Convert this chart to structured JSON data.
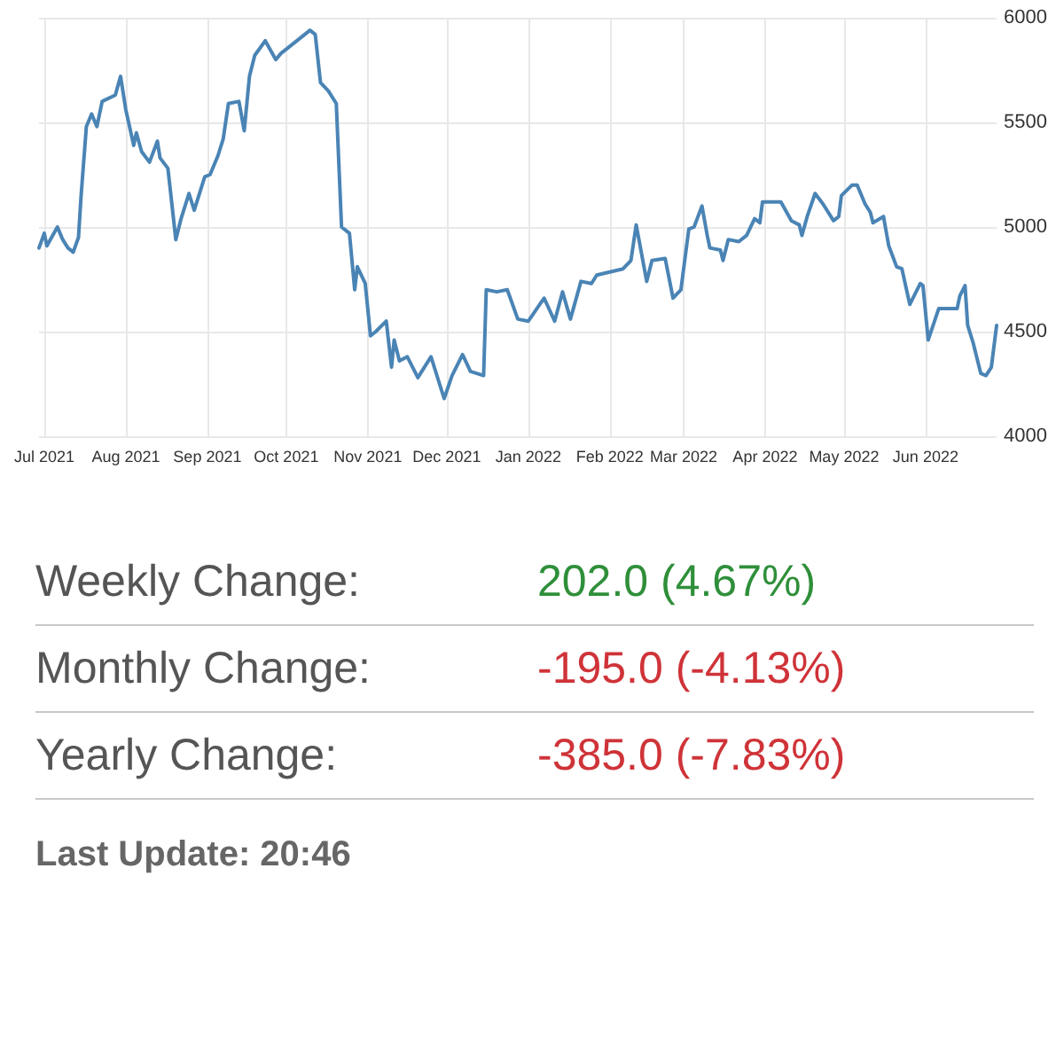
{
  "chart_data": [
    {
      "type": "line",
      "color": "#4a84b5",
      "grid": true,
      "xlim": [
        "2021-06-29",
        "2022-06-28"
      ],
      "ylim": [
        4000,
        6000
      ],
      "yticks": [
        4000,
        4500,
        5000,
        5500,
        6000
      ],
      "xticks": [
        {
          "value": "2021-07-01",
          "label": "Jul 2021"
        },
        {
          "value": "2021-08-01",
          "label": "Aug 2021"
        },
        {
          "value": "2021-09-01",
          "label": "Sep 2021"
        },
        {
          "value": "2021-10-01",
          "label": "Oct 2021"
        },
        {
          "value": "2021-11-01",
          "label": "Nov 2021"
        },
        {
          "value": "2021-12-01",
          "label": "Dec 2021"
        },
        {
          "value": "2022-01-01",
          "label": "Jan 2022"
        },
        {
          "value": "2022-02-01",
          "label": "Feb 2022"
        },
        {
          "value": "2022-03-01",
          "label": "Mar 2022"
        },
        {
          "value": "2022-04-01",
          "label": "Apr 2022"
        },
        {
          "value": "2022-05-01",
          "label": "May 2022"
        },
        {
          "value": "2022-06-01",
          "label": "Jun 2022"
        }
      ],
      "x": [
        "2021-06-29",
        "2021-07-01",
        "2021-07-02",
        "2021-07-06",
        "2021-07-08",
        "2021-07-10",
        "2021-07-12",
        "2021-07-14",
        "2021-07-15",
        "2021-07-17",
        "2021-07-19",
        "2021-07-21",
        "2021-07-23",
        "2021-07-28",
        "2021-07-30",
        "2021-08-01",
        "2021-08-04",
        "2021-08-05",
        "2021-08-07",
        "2021-08-10",
        "2021-08-13",
        "2021-08-14",
        "2021-08-17",
        "2021-08-20",
        "2021-08-22",
        "2021-08-25",
        "2021-08-27",
        "2021-08-31",
        "2021-09-02",
        "2021-09-05",
        "2021-09-07",
        "2021-09-09",
        "2021-09-13",
        "2021-09-15",
        "2021-09-17",
        "2021-09-19",
        "2021-09-23",
        "2021-09-27",
        "2021-09-29",
        "2021-10-04",
        "2021-10-10",
        "2021-10-12",
        "2021-10-14",
        "2021-10-17",
        "2021-10-20",
        "2021-10-22",
        "2021-10-25",
        "2021-10-27",
        "2021-10-28",
        "2021-10-31",
        "2021-11-02",
        "2021-11-04",
        "2021-11-08",
        "2021-11-10",
        "2021-11-11",
        "2021-11-13",
        "2021-11-16",
        "2021-11-20",
        "2021-11-25",
        "2021-11-30",
        "2021-12-03",
        "2021-12-07",
        "2021-12-10",
        "2021-12-15",
        "2021-12-16",
        "2021-12-20",
        "2021-12-24",
        "2021-12-28",
        "2022-01-01",
        "2022-01-07",
        "2022-01-11",
        "2022-01-14",
        "2022-01-17",
        "2022-01-21",
        "2022-01-25",
        "2022-01-27",
        "2022-02-06",
        "2022-02-09",
        "2022-02-11",
        "2022-02-15",
        "2022-02-17",
        "2022-02-22",
        "2022-02-25",
        "2022-02-28",
        "2022-03-03",
        "2022-03-05",
        "2022-03-08",
        "2022-03-10",
        "2022-03-11",
        "2022-03-15",
        "2022-03-16",
        "2022-03-18",
        "2022-03-22",
        "2022-03-25",
        "2022-03-28",
        "2022-03-30",
        "2022-03-31",
        "2022-04-07",
        "2022-04-11",
        "2022-04-14",
        "2022-04-15",
        "2022-04-17",
        "2022-04-20",
        "2022-04-23",
        "2022-04-27",
        "2022-04-29",
        "2022-04-30",
        "2022-05-04",
        "2022-05-06",
        "2022-05-09",
        "2022-05-11",
        "2022-05-12",
        "2022-05-16",
        "2022-05-18",
        "2022-05-21",
        "2022-05-23",
        "2022-05-26",
        "2022-05-30",
        "2022-05-31",
        "2022-06-02",
        "2022-06-06",
        "2022-06-13",
        "2022-06-14",
        "2022-06-16",
        "2022-06-17",
        "2022-06-19",
        "2022-06-22",
        "2022-06-24",
        "2022-06-26",
        "2022-06-28"
      ],
      "values": [
        4900,
        4970,
        4910,
        5000,
        4940,
        4900,
        4880,
        4950,
        5150,
        5480,
        5540,
        5480,
        5600,
        5630,
        5720,
        5560,
        5390,
        5450,
        5360,
        5310,
        5410,
        5330,
        5280,
        4940,
        5040,
        5160,
        5080,
        5240,
        5250,
        5340,
        5420,
        5590,
        5600,
        5460,
        5720,
        5820,
        5890,
        5800,
        5830,
        5880,
        5940,
        5920,
        5690,
        5650,
        5590,
        5000,
        4970,
        4700,
        4810,
        4730,
        4480,
        4500,
        4550,
        4330,
        4460,
        4360,
        4380,
        4280,
        4380,
        4180,
        4290,
        4390,
        4310,
        4290,
        4700,
        4690,
        4700,
        4560,
        4550,
        4660,
        4550,
        4690,
        4560,
        4740,
        4730,
        4770,
        4800,
        4840,
        5010,
        4740,
        4840,
        4850,
        4660,
        4700,
        4990,
        5000,
        5100,
        4960,
        4900,
        4890,
        4840,
        4940,
        4930,
        4960,
        5040,
        5020,
        5120,
        5120,
        5030,
        5010,
        4960,
        5050,
        5160,
        5110,
        5030,
        5050,
        5150,
        5200,
        5200,
        5110,
        5070,
        5020,
        5050,
        4910,
        4810,
        4800,
        4630,
        4730,
        4720,
        4460,
        4610,
        4610,
        4670,
        4720,
        4530,
        4450,
        4300,
        4290,
        4330,
        4530
      ]
    },
    {
      "type": "other",
      "annotations": [
        "Weekly Change:",
        "202.0 (4.67%)",
        "Monthly Change:",
        "-195.0 (-4.13%)",
        "Yearly Change:",
        "-385.0 (-7.83%)",
        "Last Update: 20:46"
      ],
      "colors": [
        "#555555",
        "#2f8f3a",
        "#555555",
        "#cf3338",
        "#555555",
        "#cf3338",
        "#666666"
      ]
    }
  ]
}
